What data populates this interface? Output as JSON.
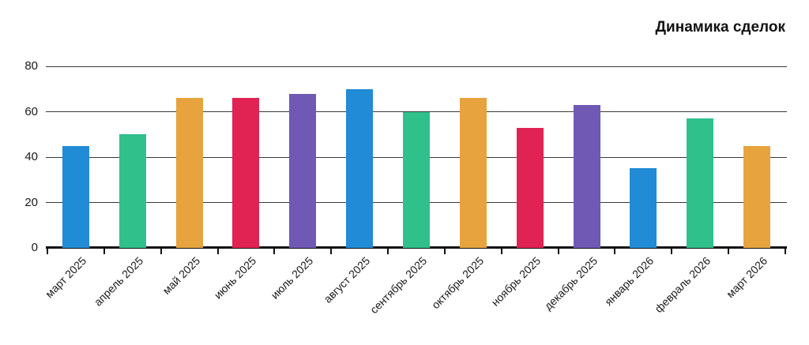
{
  "title": "Динамика сделок",
  "colors": {
    "background": "#ffffff",
    "axis": "#111111",
    "grid": "#3a3a3a",
    "text": "#1a1a1a"
  },
  "palette": [
    "#218bd6",
    "#2fc08c",
    "#e6a33e",
    "#e02352",
    "#6f59b5"
  ],
  "chart_data": {
    "type": "bar",
    "title": "Динамика сделок",
    "categories": [
      "март 2025",
      "апрель 2025",
      "май 2025",
      "июнь 2025",
      "июль 2025",
      "август 2025",
      "сентябрь 2025",
      "октябрь 2025",
      "ноябрь 2025",
      "декабрь 2025",
      "январь 2026",
      "февраль 2026",
      "март 2026"
    ],
    "values": [
      45,
      50,
      66,
      66,
      68,
      70,
      60,
      66,
      53,
      63,
      35,
      57,
      45
    ],
    "bar_colors": [
      "#218bd6",
      "#2fc08c",
      "#e6a33e",
      "#e02352",
      "#6f59b5",
      "#218bd6",
      "#2fc08c",
      "#e6a33e",
      "#e02352",
      "#6f59b5",
      "#218bd6",
      "#2fc08c",
      "#e6a33e"
    ],
    "xlabel": "",
    "ylabel": "",
    "ylim": [
      0,
      80
    ],
    "yticks": [
      0,
      20,
      40,
      60,
      80
    ],
    "grid": true,
    "legend": false,
    "x_tick_rotation": -45,
    "title_position": "top-right"
  }
}
